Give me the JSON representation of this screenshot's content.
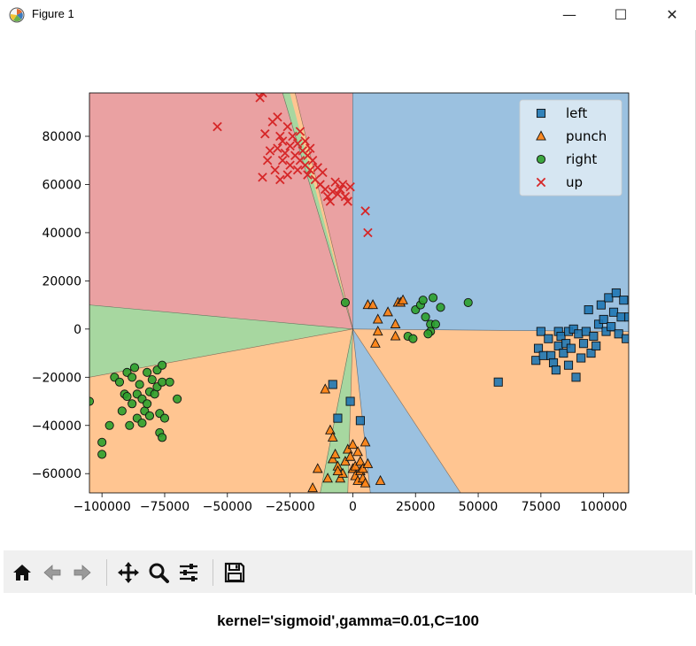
{
  "window": {
    "title": "Figure 1",
    "minimize_glyph": "—",
    "maximize_glyph": "☐",
    "close_glyph": "✕"
  },
  "toolbar": {
    "icons": [
      "home-icon",
      "back-arrow-icon",
      "forward-arrow-icon",
      "pan-icon",
      "zoom-icon",
      "configure-subplots-icon",
      "save-icon"
    ]
  },
  "caption": "kernel='sigmoid',gamma=0.01,C=100",
  "chart_data": {
    "type": "scatter",
    "xlim": [
      -105000,
      110000
    ],
    "ylim": [
      -68000,
      98000
    ],
    "x_ticks": [
      -100000,
      -75000,
      -50000,
      -25000,
      0,
      25000,
      50000,
      75000,
      100000
    ],
    "x_tick_labels": [
      "−100000",
      "−75000",
      "−50000",
      "−25000",
      "0",
      "25000",
      "50000",
      "75000",
      "100000"
    ],
    "y_ticks": [
      -60000,
      -40000,
      -20000,
      0,
      20000,
      40000,
      60000,
      80000
    ],
    "y_tick_labels": [
      "−60000",
      "−40000",
      "−20000",
      "0",
      "20000",
      "40000",
      "60000",
      "80000"
    ],
    "legend_placement": "top-right",
    "colors": {
      "left": "#1f77b4",
      "punch": "#ff7f0e",
      "right": "#2ca02c",
      "up": "#d62728"
    },
    "region_colors": {
      "left": "#9bc1e0",
      "punch": "#ffc591",
      "right": "#a7d7a0",
      "up": "#eaa1a2"
    },
    "regions": [
      {
        "class": "up",
        "polygon": [
          [
            -105000,
            98000
          ],
          [
            0,
            98000
          ],
          [
            0,
            0
          ],
          [
            -105000,
            10000
          ]
        ]
      },
      {
        "class": "right",
        "polygon": [
          [
            -105000,
            10000
          ],
          [
            0,
            0
          ],
          [
            -105000,
            -20000
          ]
        ]
      },
      {
        "class": "punch",
        "polygon": [
          [
            -105000,
            -20000
          ],
          [
            0,
            0
          ],
          [
            -13000,
            -68000
          ],
          [
            -105000,
            -68000
          ]
        ]
      },
      {
        "class": "right",
        "polygon": [
          [
            0,
            0
          ],
          [
            -13000,
            -68000
          ],
          [
            -2000,
            -68000
          ]
        ]
      },
      {
        "class": "punch",
        "polygon": [
          [
            0,
            0
          ],
          [
            -2000,
            -68000
          ],
          [
            7000,
            -68000
          ]
        ]
      },
      {
        "class": "left",
        "polygon": [
          [
            0,
            0
          ],
          [
            7000,
            -68000
          ],
          [
            43000,
            -68000
          ]
        ]
      },
      {
        "class": "punch",
        "polygon": [
          [
            0,
            0
          ],
          [
            43000,
            -68000
          ],
          [
            110000,
            -68000
          ],
          [
            110000,
            -1000
          ]
        ]
      },
      {
        "class": "left",
        "polygon": [
          [
            0,
            0
          ],
          [
            110000,
            -1000
          ],
          [
            110000,
            98000
          ],
          [
            0,
            98000
          ]
        ]
      },
      {
        "class": "right",
        "polygon": [
          [
            0,
            0
          ],
          [
            -28000,
            98000
          ],
          [
            -25000,
            98000
          ]
        ]
      },
      {
        "class": "punch",
        "polygon": [
          [
            0,
            0
          ],
          [
            -25000,
            98000
          ],
          [
            -23000,
            98000
          ]
        ]
      }
    ],
    "series": [
      {
        "name": "left",
        "marker": "square",
        "points": [
          [
            -8000,
            -23000
          ],
          [
            -6000,
            -37000
          ],
          [
            -1000,
            -30000
          ],
          [
            3000,
            -38000
          ],
          [
            58000,
            -22000
          ],
          [
            75000,
            -1000
          ],
          [
            74000,
            -8000
          ],
          [
            73000,
            -13000
          ],
          [
            76000,
            -11000
          ],
          [
            78000,
            -4000
          ],
          [
            79000,
            -11000
          ],
          [
            80000,
            -14000
          ],
          [
            81000,
            -17000
          ],
          [
            82000,
            -7000
          ],
          [
            82000,
            -1000
          ],
          [
            83000,
            -3000
          ],
          [
            84000,
            -10000
          ],
          [
            85000,
            -6000
          ],
          [
            86000,
            -1000
          ],
          [
            86000,
            -15000
          ],
          [
            87000,
            -8000
          ],
          [
            88000,
            0
          ],
          [
            89000,
            -20000
          ],
          [
            90000,
            -2000
          ],
          [
            91000,
            -12000
          ],
          [
            92000,
            -6000
          ],
          [
            93000,
            -1000
          ],
          [
            94000,
            8000
          ],
          [
            95000,
            -10000
          ],
          [
            96000,
            -3000
          ],
          [
            97000,
            -7000
          ],
          [
            98000,
            2000
          ],
          [
            99000,
            10000
          ],
          [
            100000,
            4000
          ],
          [
            101000,
            -1000
          ],
          [
            102000,
            13000
          ],
          [
            103000,
            1000
          ],
          [
            104000,
            7000
          ],
          [
            105000,
            15000
          ],
          [
            106000,
            -2000
          ],
          [
            107000,
            5000
          ],
          [
            108000,
            12000
          ],
          [
            109000,
            -4000
          ],
          [
            110000,
            5000
          ]
        ]
      },
      {
        "name": "punch",
        "marker": "triangle",
        "points": [
          [
            -11000,
            -25000
          ],
          [
            -9000,
            -42000
          ],
          [
            -8000,
            -45000
          ],
          [
            -8000,
            -54000
          ],
          [
            -7000,
            -52000
          ],
          [
            -6000,
            -57000
          ],
          [
            -5000,
            -62000
          ],
          [
            -4000,
            -60000
          ],
          [
            -3000,
            -55000
          ],
          [
            -2000,
            -50000
          ],
          [
            -1000,
            -53000
          ],
          [
            0,
            -48000
          ],
          [
            0,
            -58000
          ],
          [
            1000,
            -57000
          ],
          [
            1000,
            -61000
          ],
          [
            2000,
            -51000
          ],
          [
            2000,
            -63000
          ],
          [
            3000,
            -59000
          ],
          [
            3000,
            -55000
          ],
          [
            4000,
            -58000
          ],
          [
            4000,
            -62000
          ],
          [
            5000,
            -47000
          ],
          [
            5000,
            -64000
          ],
          [
            6000,
            -56000
          ],
          [
            -16000,
            -66000
          ],
          [
            -14000,
            -58000
          ],
          [
            -10000,
            -62000
          ],
          [
            -6000,
            -59000
          ],
          [
            11000,
            -63000
          ],
          [
            6000,
            10000
          ],
          [
            8000,
            10000
          ],
          [
            9000,
            -6000
          ],
          [
            10000,
            4000
          ],
          [
            10000,
            -1000
          ],
          [
            14000,
            7000
          ],
          [
            17000,
            2000
          ],
          [
            18000,
            11000
          ],
          [
            19000,
            11000
          ],
          [
            17000,
            -3000
          ],
          [
            20000,
            12000
          ]
        ]
      },
      {
        "name": "right",
        "marker": "circle",
        "points": [
          [
            -105000,
            -30000
          ],
          [
            -100000,
            -47000
          ],
          [
            -100000,
            -52000
          ],
          [
            -97000,
            -40000
          ],
          [
            -95000,
            -20000
          ],
          [
            -93000,
            -22000
          ],
          [
            -92000,
            -34000
          ],
          [
            -91000,
            -27000
          ],
          [
            -90000,
            -18000
          ],
          [
            -90000,
            -28000
          ],
          [
            -89000,
            -40000
          ],
          [
            -88000,
            -20000
          ],
          [
            -88000,
            -31000
          ],
          [
            -87000,
            -16000
          ],
          [
            -86000,
            -37000
          ],
          [
            -86000,
            -27000
          ],
          [
            -85000,
            -23000
          ],
          [
            -84000,
            -29000
          ],
          [
            -84000,
            -39000
          ],
          [
            -83000,
            -34000
          ],
          [
            -82000,
            -18000
          ],
          [
            -82000,
            -31000
          ],
          [
            -81000,
            -26000
          ],
          [
            -81000,
            -36000
          ],
          [
            -80000,
            -21000
          ],
          [
            -79000,
            -27000
          ],
          [
            -78000,
            -17000
          ],
          [
            -78000,
            -24000
          ],
          [
            -77000,
            -35000
          ],
          [
            -77000,
            -43000
          ],
          [
            -76000,
            -15000
          ],
          [
            -76000,
            -22000
          ],
          [
            -76000,
            -45000
          ],
          [
            -75000,
            -37000
          ],
          [
            -73000,
            -22000
          ],
          [
            -70000,
            -29000
          ],
          [
            -3000,
            11000
          ],
          [
            25000,
            8000
          ],
          [
            27000,
            10000
          ],
          [
            28000,
            12000
          ],
          [
            29000,
            5000
          ],
          [
            31000,
            2000
          ],
          [
            31000,
            -1000
          ],
          [
            32000,
            13000
          ],
          [
            33000,
            2000
          ],
          [
            35000,
            9000
          ],
          [
            46000,
            11000
          ],
          [
            22000,
            -3000
          ],
          [
            24000,
            -4000
          ],
          [
            30000,
            -2000
          ]
        ]
      },
      {
        "name": "up",
        "marker": "x",
        "points": [
          [
            -54000,
            84000
          ],
          [
            -37000,
            96000
          ],
          [
            -36000,
            98000
          ],
          [
            -35000,
            81000
          ],
          [
            -34000,
            70000
          ],
          [
            -33000,
            74000
          ],
          [
            -32000,
            86000
          ],
          [
            -31000,
            66000
          ],
          [
            -30000,
            88000
          ],
          [
            -30000,
            75000
          ],
          [
            -29000,
            80000
          ],
          [
            -29000,
            62000
          ],
          [
            -28000,
            78000
          ],
          [
            -28000,
            70000
          ],
          [
            -27000,
            73000
          ],
          [
            -26000,
            84000
          ],
          [
            -26000,
            64000
          ],
          [
            -25000,
            76000
          ],
          [
            -25000,
            68000
          ],
          [
            -24000,
            80000
          ],
          [
            -23000,
            72000
          ],
          [
            -22000,
            77000
          ],
          [
            -22000,
            66000
          ],
          [
            -21000,
            82000
          ],
          [
            -21000,
            70000
          ],
          [
            -20000,
            74000
          ],
          [
            -19000,
            68000
          ],
          [
            -19000,
            78000
          ],
          [
            -18000,
            72000
          ],
          [
            -18000,
            64000
          ],
          [
            -17000,
            66000
          ],
          [
            -17000,
            75000
          ],
          [
            -16000,
            70000
          ],
          [
            -15000,
            62000
          ],
          [
            -14000,
            67000
          ],
          [
            -13000,
            60000
          ],
          [
            -12000,
            65000
          ],
          [
            -11000,
            58000
          ],
          [
            -10000,
            55000
          ],
          [
            -9000,
            53000
          ],
          [
            -8000,
            57000
          ],
          [
            -7000,
            61000
          ],
          [
            -6000,
            56000
          ],
          [
            -5000,
            58000
          ],
          [
            -4000,
            60000
          ],
          [
            -3000,
            55000
          ],
          [
            -2000,
            53000
          ],
          [
            -1000,
            59000
          ],
          [
            5000,
            49000
          ],
          [
            6000,
            40000
          ],
          [
            -36000,
            63000
          ]
        ]
      }
    ]
  }
}
